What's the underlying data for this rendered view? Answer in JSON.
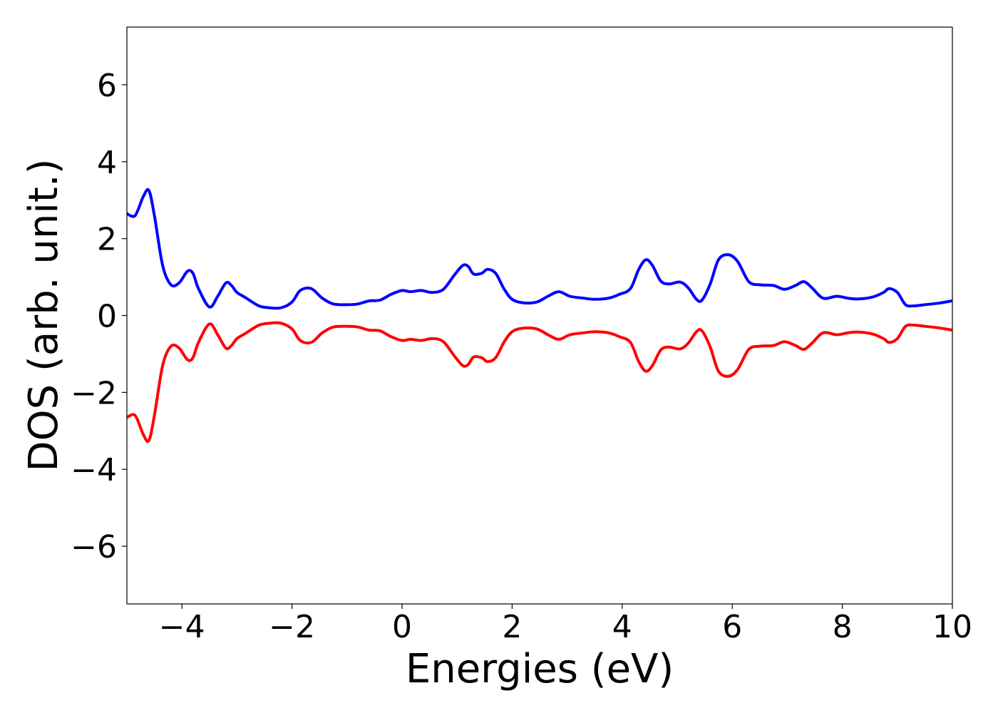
{
  "chart_data": {
    "type": "line",
    "title": "",
    "xlabel": "Energies (eV)",
    "ylabel": "DOS (arb. unit.)",
    "xlim": [
      -5,
      10
    ],
    "ylim": [
      -7.5,
      7.5
    ],
    "xticks": [
      -4,
      -2,
      0,
      2,
      4,
      6,
      8,
      10
    ],
    "xtick_labels": [
      "−4",
      "−2",
      "0",
      "2",
      "4",
      "6",
      "8",
      "10"
    ],
    "yticks": [
      -6,
      -4,
      -2,
      0,
      2,
      4,
      6
    ],
    "ytick_labels": [
      "−6",
      "−4",
      "−2",
      "0",
      "2",
      "4",
      "6"
    ],
    "grid": false,
    "legend": "none",
    "colors": {
      "up": "#0000ff",
      "down": "#ff0000"
    },
    "x": [
      -5.0,
      -4.85,
      -4.7,
      -4.6,
      -4.5,
      -4.35,
      -4.2,
      -4.05,
      -3.9,
      -3.8,
      -3.7,
      -3.5,
      -3.35,
      -3.2,
      -3.1,
      -3.0,
      -2.85,
      -2.6,
      -2.4,
      -2.2,
      -2.0,
      -1.85,
      -1.65,
      -1.45,
      -1.25,
      -1.0,
      -0.8,
      -0.6,
      -0.4,
      -0.2,
      0.0,
      0.15,
      0.35,
      0.55,
      0.75,
      0.95,
      1.1,
      1.2,
      1.3,
      1.45,
      1.55,
      1.7,
      1.85,
      2.0,
      2.2,
      2.45,
      2.65,
      2.85,
      3.05,
      3.3,
      3.5,
      3.75,
      3.95,
      4.15,
      4.3,
      4.43,
      4.55,
      4.7,
      4.85,
      5.05,
      5.2,
      5.35,
      5.45,
      5.6,
      5.75,
      5.93,
      6.1,
      6.3,
      6.5,
      6.75,
      6.95,
      7.15,
      7.3,
      7.45,
      7.65,
      7.9,
      8.1,
      8.3,
      8.55,
      8.75,
      8.85,
      9.0,
      9.15,
      9.3,
      9.5,
      9.75,
      10.0
    ],
    "series": [
      {
        "values": [
          2.65,
          2.6,
          3.1,
          3.25,
          2.6,
          1.3,
          0.8,
          0.85,
          1.15,
          1.1,
          0.7,
          0.22,
          0.5,
          0.85,
          0.78,
          0.6,
          0.47,
          0.25,
          0.2,
          0.2,
          0.35,
          0.65,
          0.7,
          0.45,
          0.3,
          0.28,
          0.3,
          0.38,
          0.4,
          0.55,
          0.65,
          0.62,
          0.65,
          0.6,
          0.68,
          1.05,
          1.3,
          1.28,
          1.08,
          1.1,
          1.2,
          1.1,
          0.7,
          0.42,
          0.33,
          0.35,
          0.5,
          0.62,
          0.5,
          0.45,
          0.42,
          0.45,
          0.55,
          0.7,
          1.2,
          1.45,
          1.3,
          0.9,
          0.82,
          0.87,
          0.72,
          0.42,
          0.4,
          0.82,
          1.45,
          1.58,
          1.4,
          0.88,
          0.8,
          0.78,
          0.68,
          0.78,
          0.88,
          0.72,
          0.45,
          0.5,
          0.45,
          0.43,
          0.48,
          0.6,
          0.7,
          0.6,
          0.28,
          0.25,
          0.28,
          0.32,
          0.38
        ]
      },
      {
        "values": [
          -2.65,
          -2.6,
          -3.1,
          -3.25,
          -2.6,
          -1.3,
          -0.8,
          -0.85,
          -1.15,
          -1.1,
          -0.7,
          -0.22,
          -0.5,
          -0.85,
          -0.78,
          -0.6,
          -0.47,
          -0.25,
          -0.2,
          -0.2,
          -0.35,
          -0.65,
          -0.7,
          -0.45,
          -0.3,
          -0.28,
          -0.3,
          -0.38,
          -0.4,
          -0.55,
          -0.65,
          -0.62,
          -0.65,
          -0.6,
          -0.68,
          -1.05,
          -1.3,
          -1.28,
          -1.08,
          -1.1,
          -1.2,
          -1.1,
          -0.7,
          -0.42,
          -0.33,
          -0.35,
          -0.5,
          -0.62,
          -0.5,
          -0.45,
          -0.42,
          -0.45,
          -0.55,
          -0.7,
          -1.2,
          -1.45,
          -1.3,
          -0.9,
          -0.82,
          -0.87,
          -0.72,
          -0.42,
          -0.4,
          -0.82,
          -1.45,
          -1.58,
          -1.4,
          -0.88,
          -0.8,
          -0.78,
          -0.68,
          -0.78,
          -0.88,
          -0.72,
          -0.45,
          -0.5,
          -0.45,
          -0.43,
          -0.48,
          -0.6,
          -0.7,
          -0.6,
          -0.28,
          -0.25,
          -0.28,
          -0.32,
          -0.38
        ]
      }
    ]
  }
}
